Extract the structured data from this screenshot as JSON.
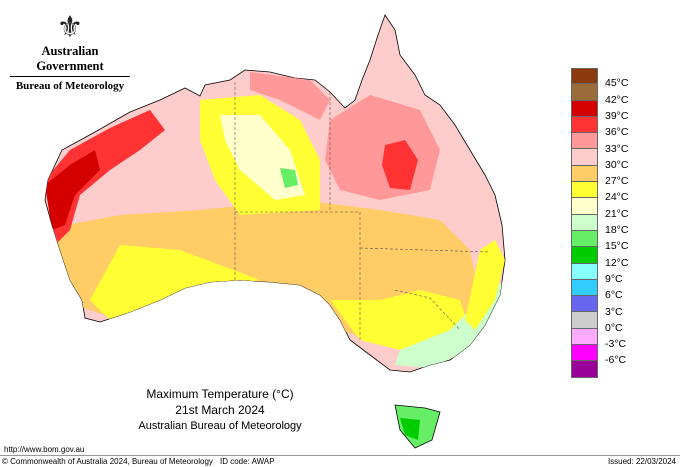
{
  "header": {
    "government": "Australian Government",
    "bureau": "Bureau of Meteorology",
    "crest_icon": "coat-of-arms-icon"
  },
  "title": {
    "line1": "Maximum Temperature (°C)",
    "line2": "21st March 2024",
    "line3": "Australian Bureau of Meteorology"
  },
  "legend": {
    "labels": [
      "45°C",
      "42°C",
      "39°C",
      "36°C",
      "33°C",
      "30°C",
      "27°C",
      "24°C",
      "21°C",
      "18°C",
      "15°C",
      "12°C",
      "9°C",
      "6°C",
      "3°C",
      "0°C",
      "-3°C",
      "-6°C"
    ],
    "colors": [
      "#8b3a0f",
      "#9c6b3a",
      "#d40000",
      "#ff3333",
      "#ff9999",
      "#ffcccc",
      "#ffcc66",
      "#ffff33",
      "#ffffcc",
      "#ccffcc",
      "#66ee66",
      "#00cc00",
      "#88ffff",
      "#33ccff",
      "#6666ee",
      "#cccccc",
      "#ffaaff",
      "#ff00ff",
      "#990099"
    ]
  },
  "footer": {
    "url": "http://www.bom.gov.au",
    "copyright": "© Commonwealth of Australia 2024, Bureau of Meteorology",
    "id_code": "ID code: AWAP",
    "issued": "Issued: 22/03/2024"
  }
}
